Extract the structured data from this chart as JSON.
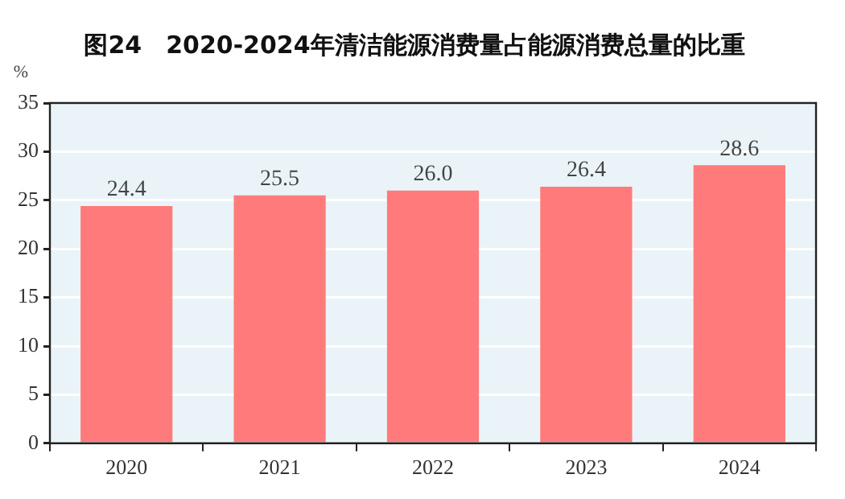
{
  "chart_data": {
    "type": "bar",
    "title": "图24　2020-2024年清洁能源消费量占能源消费总量的比重",
    "ylabel": "%",
    "categories": [
      "2020",
      "2021",
      "2022",
      "2023",
      "2024"
    ],
    "values": [
      24.4,
      25.5,
      26.0,
      26.4,
      28.6
    ],
    "color": "#ff7b7b",
    "value_labels": [
      "24.4",
      "25.5",
      "26.0",
      "26.4",
      "28.6"
    ],
    "ylim": [
      0,
      35
    ],
    "yticks": [
      0,
      5,
      10,
      15,
      20,
      25,
      30,
      35
    ],
    "grid": "y"
  }
}
